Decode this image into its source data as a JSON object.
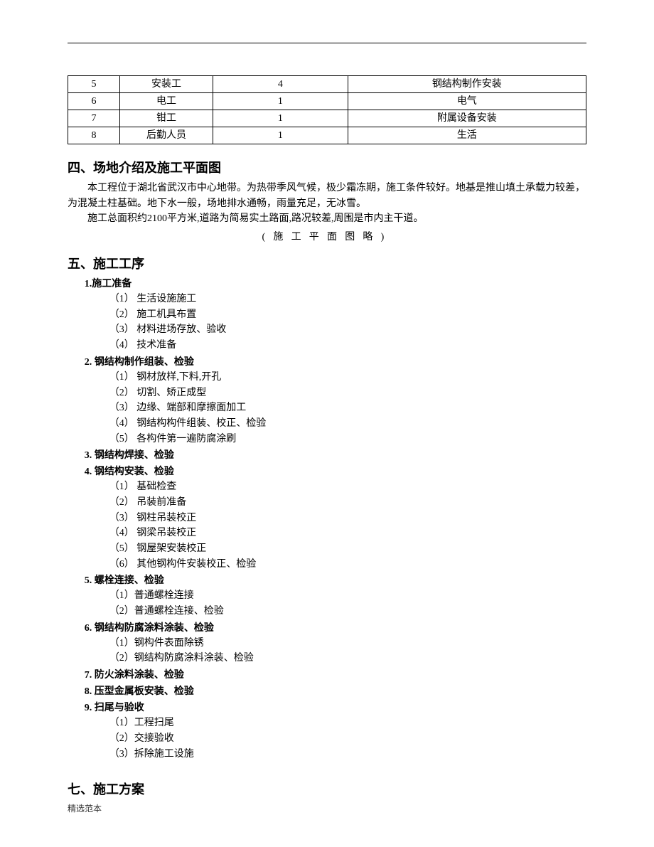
{
  "table": {
    "rows": [
      [
        "5",
        "安装工",
        "4",
        "钢结构制作安装"
      ],
      [
        "6",
        "电工",
        "1",
        "电气"
      ],
      [
        "7",
        "钳工",
        "1",
        "附属设备安装"
      ],
      [
        "8",
        "后勤人员",
        "1",
        "生活"
      ]
    ]
  },
  "section4": {
    "heading": "四、场地介绍及施工平面图",
    "para1": "本工程位于湖北省武汉市中心地带。为热带季风气候，极少霜冻期，施工条件较好。地基是推山填土承载力较差，为混凝土柱基础。地下水一般，场地排水通畅，雨量充足，无冰雪。",
    "para2": "施工总面积约2100平方米,道路为简易实土路面,路况较差,周围是市内主干道。",
    "note": "(施工平面图略)"
  },
  "section5": {
    "heading": "五、施工工序",
    "items": [
      {
        "title": "1.施工准备",
        "subs": [
          "（1） 生活设施施工",
          "（2） 施工机具布置",
          "（3） 材料进场存放、验收",
          "（4） 技术准备"
        ]
      },
      {
        "title": "2. 钢结构制作组装、检验",
        "subs": [
          "（1）  钢材放样,下料,开孔",
          "（2）  切割、矫正成型",
          "（3）  边缘、端部和摩擦面加工",
          "（4）  钢结构构件组装、校正、检验",
          "（5）  各构件第一遍防腐涂刷"
        ]
      },
      {
        "title": "3. 钢结构焊接、检验",
        "subs": []
      },
      {
        "title": "4. 钢结构安装、检验",
        "subs": [
          "（1） 基础检查",
          "（2） 吊装前准备",
          "（3） 钢柱吊装校正",
          "（4） 钢梁吊装校正",
          "（5） 钢屋架安装校正",
          "（6） 其他钢构件安装校正、检验"
        ]
      },
      {
        "title": "5. 螺栓连接、检验",
        "subs": [
          "（1）普通螺栓连接",
          "（2）普通螺栓连接、检验"
        ]
      },
      {
        "title": "6. 钢结构防腐涂料涂装、检验",
        "subs": [
          "（1）钢构件表面除锈",
          "（2）钢结构防腐涂料涂装、检验"
        ]
      },
      {
        "title": "7. 防火涂料涂装、检验",
        "subs": []
      },
      {
        "title": "8. 压型金属板安装、检验",
        "subs": []
      },
      {
        "title": "9. 扫尾与验收",
        "subs": [
          "（1）工程扫尾",
          "（2）交接验收",
          "（3）拆除施工设施"
        ]
      }
    ]
  },
  "section7": {
    "heading": "七、施工方案"
  },
  "footer": "精选范本"
}
